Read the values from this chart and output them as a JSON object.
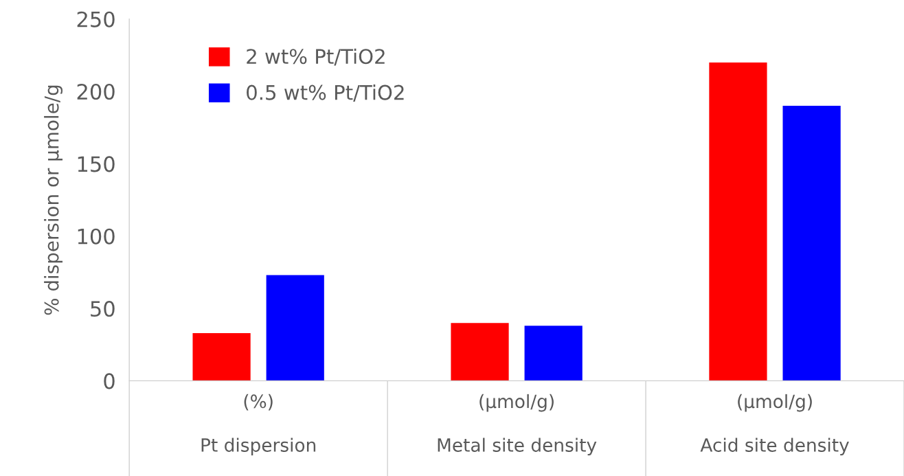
{
  "chart_data": {
    "type": "bar",
    "ylabel": "% dispersion or µmole/g",
    "categories": [
      "(%)\nPt dispersion",
      "(µmol/g)\nMetal site density",
      "(µmol/g)\nAcid site density"
    ],
    "series": [
      {
        "name": "2 wt% Pt/TiO2",
        "color": "#ff0000",
        "values": [
          33,
          40,
          220
        ]
      },
      {
        "name": "0.5 wt% Pt/TiO2",
        "color": "#0000ff",
        "values": [
          73,
          38,
          190
        ]
      }
    ],
    "ylim": [
      0,
      250
    ],
    "yticks": [
      0,
      50,
      100,
      150,
      200,
      250
    ],
    "grid": false,
    "legend": "top left"
  }
}
